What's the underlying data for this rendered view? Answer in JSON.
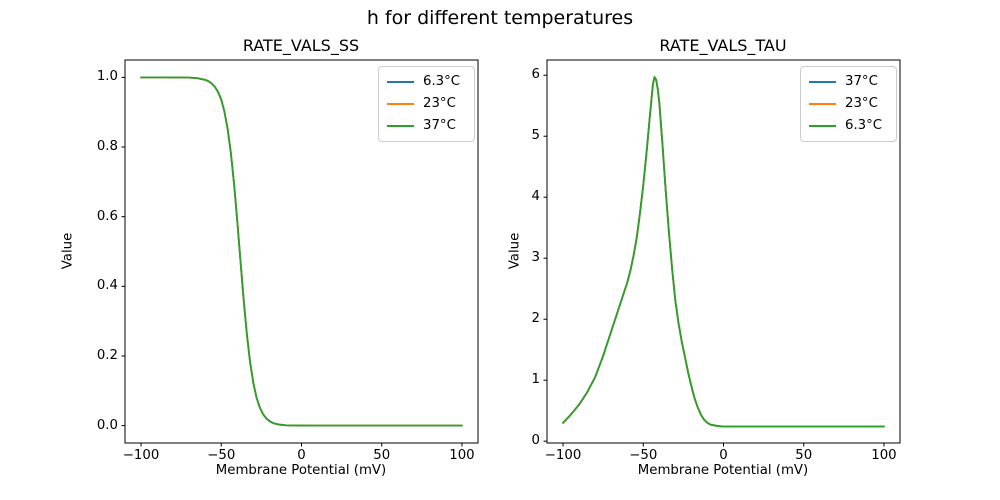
{
  "figure": {
    "suptitle": "h for different temperatures",
    "background_color": "#ffffff",
    "text_color": "#000000",
    "spine_color": "#000000"
  },
  "chart_data": [
    {
      "type": "line",
      "title": "RATE_VALS_SS",
      "xlabel": "Membrane Potential (mV)",
      "ylabel": "Value",
      "grid": false,
      "legend_position": "upper right",
      "xlim": [
        -110,
        110
      ],
      "ylim": [
        -0.05,
        1.05
      ],
      "xticks": {
        "values": [
          -100,
          -50,
          0,
          50,
          100
        ],
        "labels": [
          "−100",
          "−50",
          "0",
          "50",
          "100"
        ]
      },
      "yticks": {
        "values": [
          0.0,
          0.2,
          0.4,
          0.6,
          0.8,
          1.0
        ],
        "labels": [
          "0.0",
          "0.2",
          "0.4",
          "0.6",
          "0.8",
          "1.0"
        ]
      },
      "x": [
        -100,
        -95,
        -90,
        -85,
        -80,
        -75,
        -70,
        -65,
        -60,
        -58,
        -56,
        -54,
        -52,
        -50,
        -48,
        -46,
        -44,
        -42,
        -40,
        -38,
        -36,
        -34,
        -32,
        -30,
        -28,
        -26,
        -24,
        -22,
        -20,
        -18,
        -16,
        -14,
        -12,
        -10,
        -5,
        0,
        10,
        20,
        30,
        40,
        50,
        60,
        70,
        80,
        90,
        100
      ],
      "series": [
        {
          "name": "6.3°C",
          "color": "#1f77b4",
          "values": [
            1.0,
            1.0,
            1.0,
            1.0,
            0.9999,
            0.9998,
            0.9994,
            0.998,
            0.993,
            0.989,
            0.983,
            0.973,
            0.958,
            0.936,
            0.901,
            0.851,
            0.782,
            0.693,
            0.586,
            0.471,
            0.359,
            0.26,
            0.181,
            0.122,
            0.08,
            0.052,
            0.033,
            0.021,
            0.013,
            0.008,
            0.005,
            0.003,
            0.002,
            0.001,
            0.0004,
            0.0001,
            0.0,
            0.0,
            0.0,
            0.0,
            0.0,
            0.0,
            0.0,
            0.0,
            0.0,
            0.0
          ]
        },
        {
          "name": "23°C",
          "color": "#ff7f0e",
          "values": [
            1.0,
            1.0,
            1.0,
            1.0,
            0.9999,
            0.9998,
            0.9994,
            0.998,
            0.993,
            0.989,
            0.983,
            0.973,
            0.958,
            0.936,
            0.901,
            0.851,
            0.782,
            0.693,
            0.586,
            0.471,
            0.359,
            0.26,
            0.181,
            0.122,
            0.08,
            0.052,
            0.033,
            0.021,
            0.013,
            0.008,
            0.005,
            0.003,
            0.002,
            0.001,
            0.0004,
            0.0001,
            0.0,
            0.0,
            0.0,
            0.0,
            0.0,
            0.0,
            0.0,
            0.0,
            0.0,
            0.0
          ]
        },
        {
          "name": "37°C",
          "color": "#2ca02c",
          "values": [
            1.0,
            1.0,
            1.0,
            1.0,
            0.9999,
            0.9998,
            0.9994,
            0.998,
            0.993,
            0.989,
            0.983,
            0.973,
            0.958,
            0.936,
            0.901,
            0.851,
            0.782,
            0.693,
            0.586,
            0.471,
            0.359,
            0.26,
            0.181,
            0.122,
            0.08,
            0.052,
            0.033,
            0.021,
            0.013,
            0.008,
            0.005,
            0.003,
            0.002,
            0.001,
            0.0004,
            0.0001,
            0.0,
            0.0,
            0.0,
            0.0,
            0.0,
            0.0,
            0.0,
            0.0,
            0.0,
            0.0
          ]
        }
      ]
    },
    {
      "type": "line",
      "title": "RATE_VALS_TAU",
      "xlabel": "Membrane Potential (mV)",
      "ylabel": "Value",
      "grid": false,
      "legend_position": "upper right",
      "xlim": [
        -110,
        110
      ],
      "ylim": [
        -0.03,
        6.25
      ],
      "xticks": {
        "values": [
          -100,
          -50,
          0,
          50,
          100
        ],
        "labels": [
          "−100",
          "−50",
          "0",
          "50",
          "100"
        ]
      },
      "yticks": {
        "values": [
          0,
          1,
          2,
          3,
          4,
          5,
          6
        ],
        "labels": [
          "0",
          "1",
          "2",
          "3",
          "4",
          "5",
          "6"
        ]
      },
      "x": [
        -100,
        -95,
        -90,
        -85,
        -80,
        -75,
        -70,
        -65,
        -60,
        -58,
        -56,
        -54,
        -52,
        -50,
        -48,
        -46,
        -44,
        -43,
        -42,
        -41,
        -40,
        -38,
        -36,
        -34,
        -32,
        -30,
        -28,
        -26,
        -24,
        -22,
        -20,
        -18,
        -16,
        -14,
        -12,
        -10,
        -8,
        -6,
        -4,
        -2,
        0,
        5,
        10,
        20,
        30,
        40,
        50,
        60,
        70,
        80,
        90,
        100
      ],
      "series": [
        {
          "name": "37°C",
          "color": "#1f77b4",
          "values": [
            0.3,
            0.44,
            0.6,
            0.8,
            1.05,
            1.4,
            1.8,
            2.2,
            2.6,
            2.8,
            3.05,
            3.35,
            3.75,
            4.2,
            4.72,
            5.3,
            5.85,
            5.97,
            5.93,
            5.78,
            5.55,
            4.85,
            4.1,
            3.42,
            2.82,
            2.3,
            1.93,
            1.63,
            1.38,
            1.12,
            0.9,
            0.7,
            0.55,
            0.43,
            0.35,
            0.3,
            0.27,
            0.26,
            0.25,
            0.245,
            0.24,
            0.24,
            0.24,
            0.24,
            0.24,
            0.24,
            0.24,
            0.24,
            0.24,
            0.24,
            0.24,
            0.24
          ]
        },
        {
          "name": "23°C",
          "color": "#ff7f0e",
          "values": [
            0.3,
            0.44,
            0.6,
            0.8,
            1.05,
            1.4,
            1.8,
            2.2,
            2.6,
            2.8,
            3.05,
            3.35,
            3.75,
            4.2,
            4.72,
            5.3,
            5.85,
            5.97,
            5.93,
            5.78,
            5.55,
            4.85,
            4.1,
            3.42,
            2.82,
            2.3,
            1.93,
            1.63,
            1.38,
            1.12,
            0.9,
            0.7,
            0.55,
            0.43,
            0.35,
            0.3,
            0.27,
            0.26,
            0.25,
            0.245,
            0.24,
            0.24,
            0.24,
            0.24,
            0.24,
            0.24,
            0.24,
            0.24,
            0.24,
            0.24,
            0.24,
            0.24
          ]
        },
        {
          "name": "6.3°C",
          "color": "#2ca02c",
          "values": [
            0.3,
            0.44,
            0.6,
            0.8,
            1.05,
            1.4,
            1.8,
            2.2,
            2.6,
            2.8,
            3.05,
            3.35,
            3.75,
            4.2,
            4.72,
            5.3,
            5.85,
            5.97,
            5.93,
            5.78,
            5.55,
            4.85,
            4.1,
            3.42,
            2.82,
            2.3,
            1.93,
            1.63,
            1.38,
            1.12,
            0.9,
            0.7,
            0.55,
            0.43,
            0.35,
            0.3,
            0.27,
            0.26,
            0.25,
            0.245,
            0.24,
            0.24,
            0.24,
            0.24,
            0.24,
            0.24,
            0.24,
            0.24,
            0.24,
            0.24,
            0.24,
            0.24
          ]
        }
      ]
    }
  ]
}
